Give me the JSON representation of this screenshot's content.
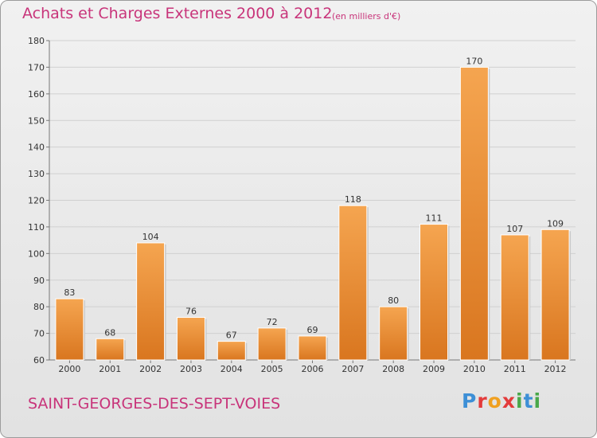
{
  "header": {
    "title": "Achats et Charges Externes 2000 à 2012",
    "unit": "(en milliers d'€)"
  },
  "footer": {
    "commune": "SAINT-GEORGES-DES-SEPT-VOIES",
    "logo_letters": [
      "P",
      "r",
      "o",
      "x",
      "i",
      "t",
      "i"
    ]
  },
  "colors": {
    "title": "#c8347a",
    "bar_light": "#f5a550",
    "bar_dark": "#d9761f",
    "logo": [
      "#3d8fd6",
      "#e33b3b",
      "#f0a020",
      "#e33b3b",
      "#4aa84a",
      "#3d8fd6",
      "#4aa84a"
    ]
  },
  "chart_data": {
    "type": "bar",
    "categories": [
      "2000",
      "2001",
      "2002",
      "2003",
      "2004",
      "2005",
      "2006",
      "2007",
      "2008",
      "2009",
      "2010",
      "2011",
      "2012"
    ],
    "values": [
      83,
      68,
      104,
      76,
      67,
      72,
      69,
      118,
      80,
      111,
      170,
      107,
      109
    ],
    "ylim": [
      60,
      180
    ],
    "yticks": [
      60,
      70,
      80,
      90,
      100,
      110,
      120,
      130,
      140,
      150,
      160,
      170,
      180
    ],
    "grid": true
  }
}
